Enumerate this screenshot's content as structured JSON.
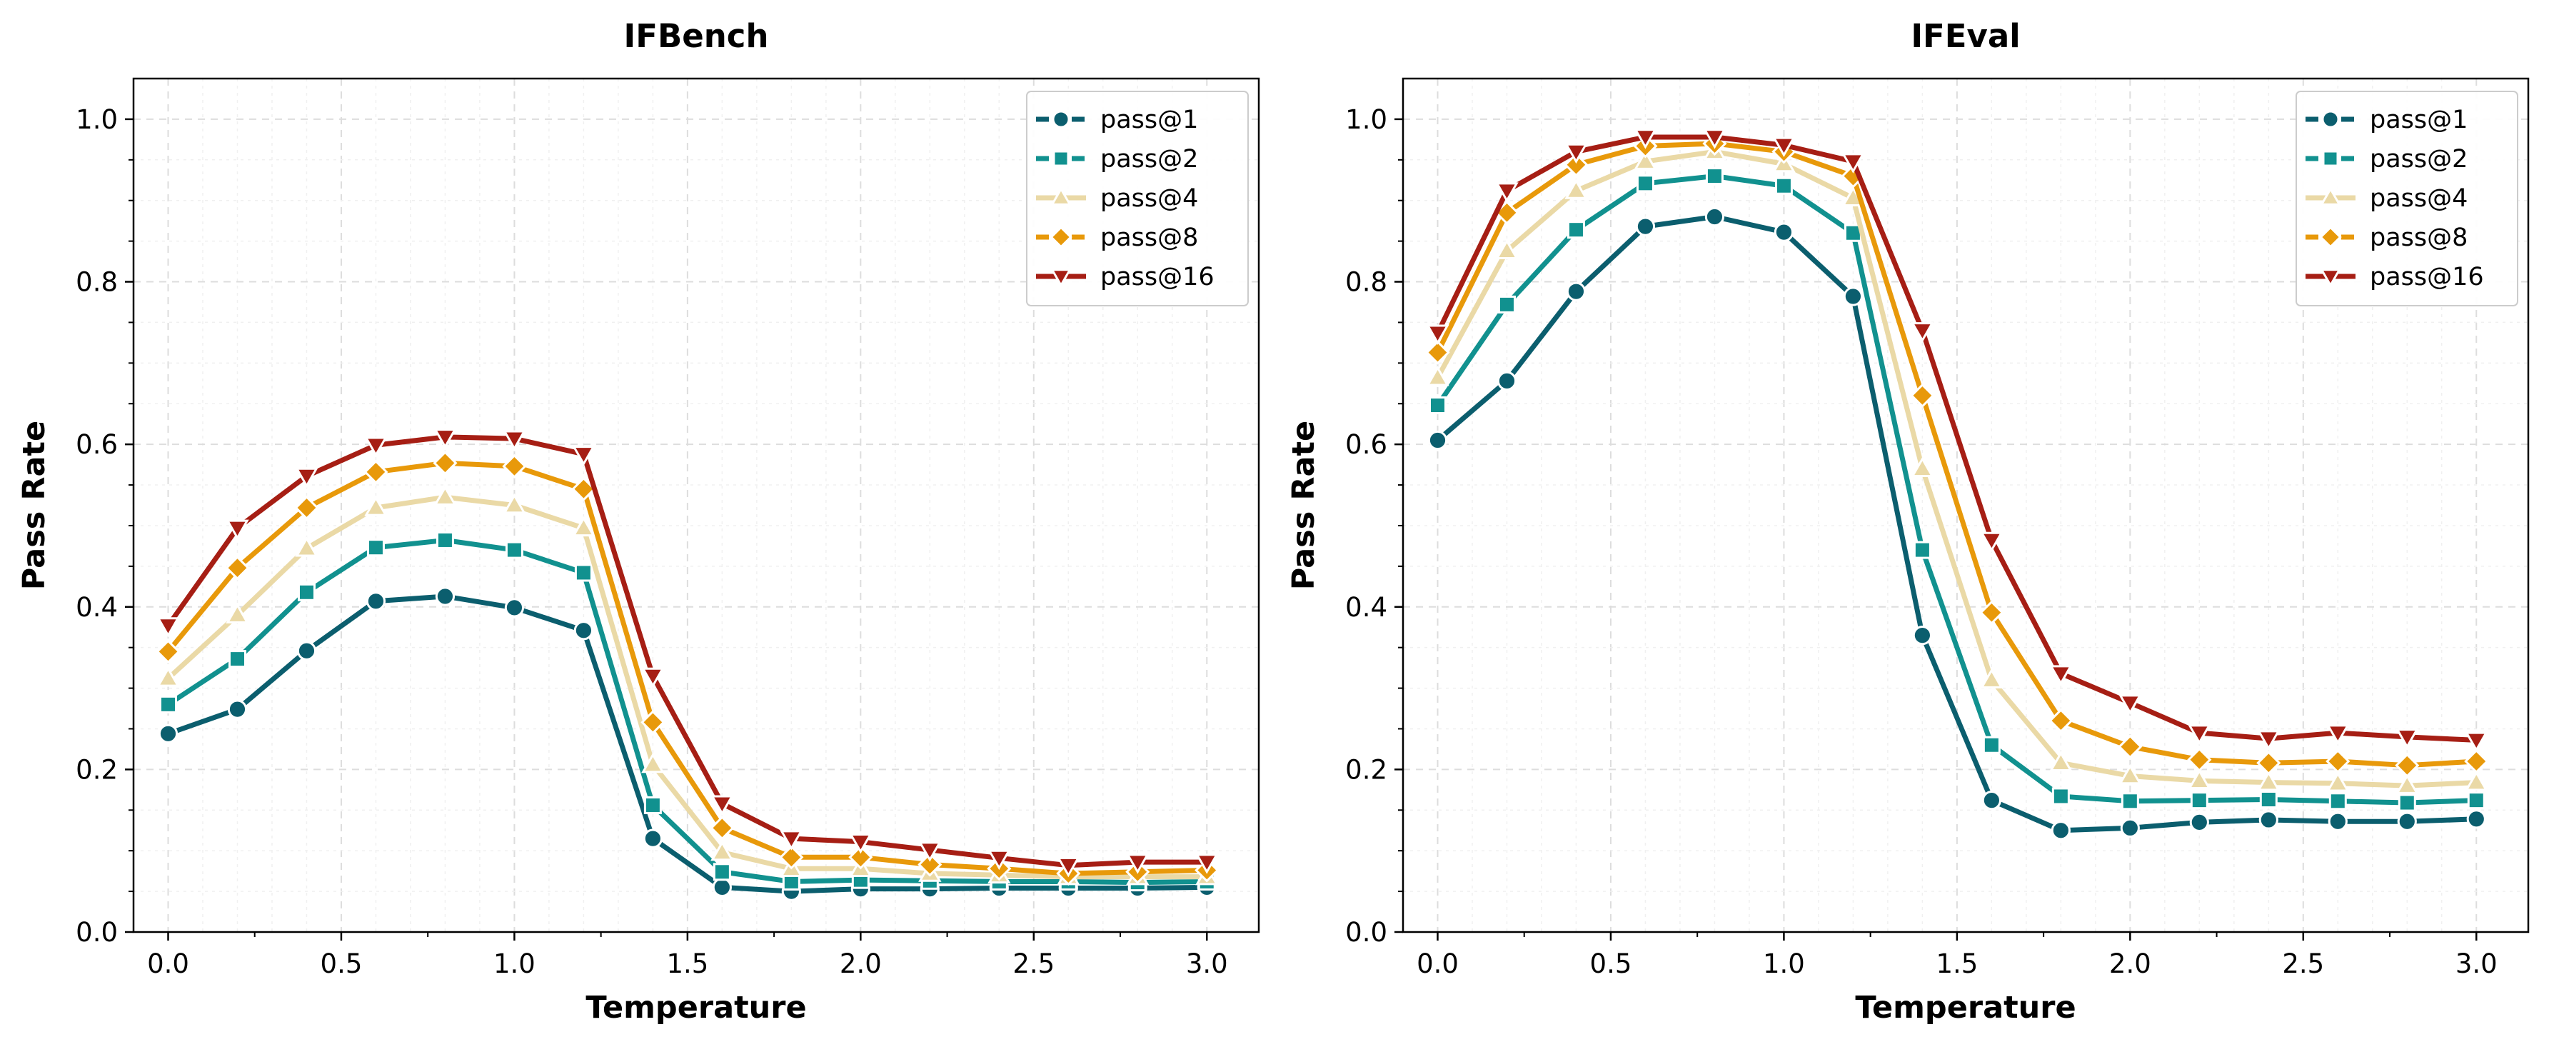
{
  "chart_data": [
    {
      "type": "line",
      "title": "IFBench",
      "xlabel": "Temperature",
      "ylabel": "Pass Rate",
      "xlim": [
        -0.1,
        3.15
      ],
      "ylim": [
        0.0,
        1.05
      ],
      "xticks": [
        0.0,
        0.5,
        1.0,
        1.5,
        2.0,
        2.5,
        3.0
      ],
      "xtick_labels": [
        "0.0",
        "0.5",
        "1.0",
        "1.5",
        "2.0",
        "2.5",
        "3.0"
      ],
      "yticks": [
        0.0,
        0.2,
        0.4,
        0.6,
        0.8,
        1.0
      ],
      "ytick_labels": [
        "0.0",
        "0.2",
        "0.4",
        "0.6",
        "0.8",
        "1.0"
      ],
      "grid": true,
      "legend_position": "top-right",
      "x": [
        0.0,
        0.2,
        0.4,
        0.6,
        0.8,
        1.0,
        1.2,
        1.4,
        1.6,
        1.8,
        2.0,
        2.2,
        2.4,
        2.6,
        2.8,
        3.0
      ],
      "series": [
        {
          "name": "pass@1",
          "color": "#0b5e6e",
          "marker": "circle",
          "dash": true,
          "values": [
            0.244,
            0.274,
            0.346,
            0.407,
            0.413,
            0.399,
            0.371,
            0.115,
            0.055,
            0.05,
            0.053,
            0.053,
            0.054,
            0.054,
            0.054,
            0.055
          ]
        },
        {
          "name": "pass@2",
          "color": "#11918f",
          "marker": "square",
          "dash": true,
          "values": [
            0.28,
            0.336,
            0.418,
            0.473,
            0.482,
            0.47,
            0.442,
            0.156,
            0.074,
            0.062,
            0.064,
            0.063,
            0.062,
            0.062,
            0.061,
            0.062
          ]
        },
        {
          "name": "pass@4",
          "color": "#ead9a6",
          "marker": "triangle-up",
          "dash": false,
          "values": [
            0.312,
            0.39,
            0.472,
            0.522,
            0.535,
            0.525,
            0.497,
            0.206,
            0.098,
            0.078,
            0.078,
            0.072,
            0.07,
            0.068,
            0.068,
            0.068
          ]
        },
        {
          "name": "pass@8",
          "color": "#e8990a",
          "marker": "diamond",
          "dash": true,
          "values": [
            0.345,
            0.448,
            0.522,
            0.566,
            0.577,
            0.573,
            0.545,
            0.258,
            0.128,
            0.092,
            0.092,
            0.083,
            0.078,
            0.072,
            0.074,
            0.076
          ]
        },
        {
          "name": "pass@16",
          "color": "#a61e14",
          "marker": "triangle-down",
          "dash": false,
          "values": [
            0.377,
            0.497,
            0.561,
            0.599,
            0.609,
            0.607,
            0.588,
            0.315,
            0.158,
            0.115,
            0.111,
            0.101,
            0.091,
            0.082,
            0.086,
            0.086
          ]
        }
      ]
    },
    {
      "type": "line",
      "title": "IFEval",
      "xlabel": "Temperature",
      "ylabel": "Pass Rate",
      "xlim": [
        -0.1,
        3.15
      ],
      "ylim": [
        0.0,
        1.05
      ],
      "xticks": [
        0.0,
        0.5,
        1.0,
        1.5,
        2.0,
        2.5,
        3.0
      ],
      "xtick_labels": [
        "0.0",
        "0.5",
        "1.0",
        "1.5",
        "2.0",
        "2.5",
        "3.0"
      ],
      "yticks": [
        0.0,
        0.2,
        0.4,
        0.6,
        0.8,
        1.0
      ],
      "ytick_labels": [
        "0.0",
        "0.2",
        "0.4",
        "0.6",
        "0.8",
        "1.0"
      ],
      "grid": true,
      "legend_position": "top-right",
      "x": [
        0.0,
        0.2,
        0.4,
        0.6,
        0.8,
        1.0,
        1.2,
        1.4,
        1.6,
        1.8,
        2.0,
        2.2,
        2.4,
        2.6,
        2.8,
        3.0
      ],
      "series": [
        {
          "name": "pass@1",
          "color": "#0b5e6e",
          "marker": "circle",
          "dash": true,
          "values": [
            0.605,
            0.678,
            0.788,
            0.868,
            0.88,
            0.861,
            0.782,
            0.365,
            0.162,
            0.125,
            0.128,
            0.135,
            0.138,
            0.136,
            0.136,
            0.139
          ]
        },
        {
          "name": "pass@2",
          "color": "#11918f",
          "marker": "square",
          "dash": true,
          "values": [
            0.648,
            0.772,
            0.864,
            0.921,
            0.93,
            0.918,
            0.86,
            0.47,
            0.23,
            0.167,
            0.161,
            0.162,
            0.163,
            0.161,
            0.159,
            0.162
          ]
        },
        {
          "name": "pass@4",
          "color": "#ead9a6",
          "marker": "triangle-up",
          "dash": false,
          "values": [
            0.682,
            0.838,
            0.912,
            0.948,
            0.96,
            0.945,
            0.903,
            0.57,
            0.31,
            0.208,
            0.192,
            0.186,
            0.184,
            0.183,
            0.18,
            0.184
          ]
        },
        {
          "name": "pass@8",
          "color": "#e8990a",
          "marker": "diamond",
          "dash": true,
          "values": [
            0.713,
            0.885,
            0.944,
            0.967,
            0.97,
            0.96,
            0.93,
            0.66,
            0.393,
            0.26,
            0.228,
            0.212,
            0.208,
            0.21,
            0.205,
            0.21
          ]
        },
        {
          "name": "pass@16",
          "color": "#a61e14",
          "marker": "triangle-down",
          "dash": false,
          "values": [
            0.737,
            0.912,
            0.96,
            0.978,
            0.978,
            0.968,
            0.948,
            0.74,
            0.482,
            0.318,
            0.282,
            0.245,
            0.238,
            0.245,
            0.24,
            0.236
          ]
        }
      ]
    }
  ]
}
